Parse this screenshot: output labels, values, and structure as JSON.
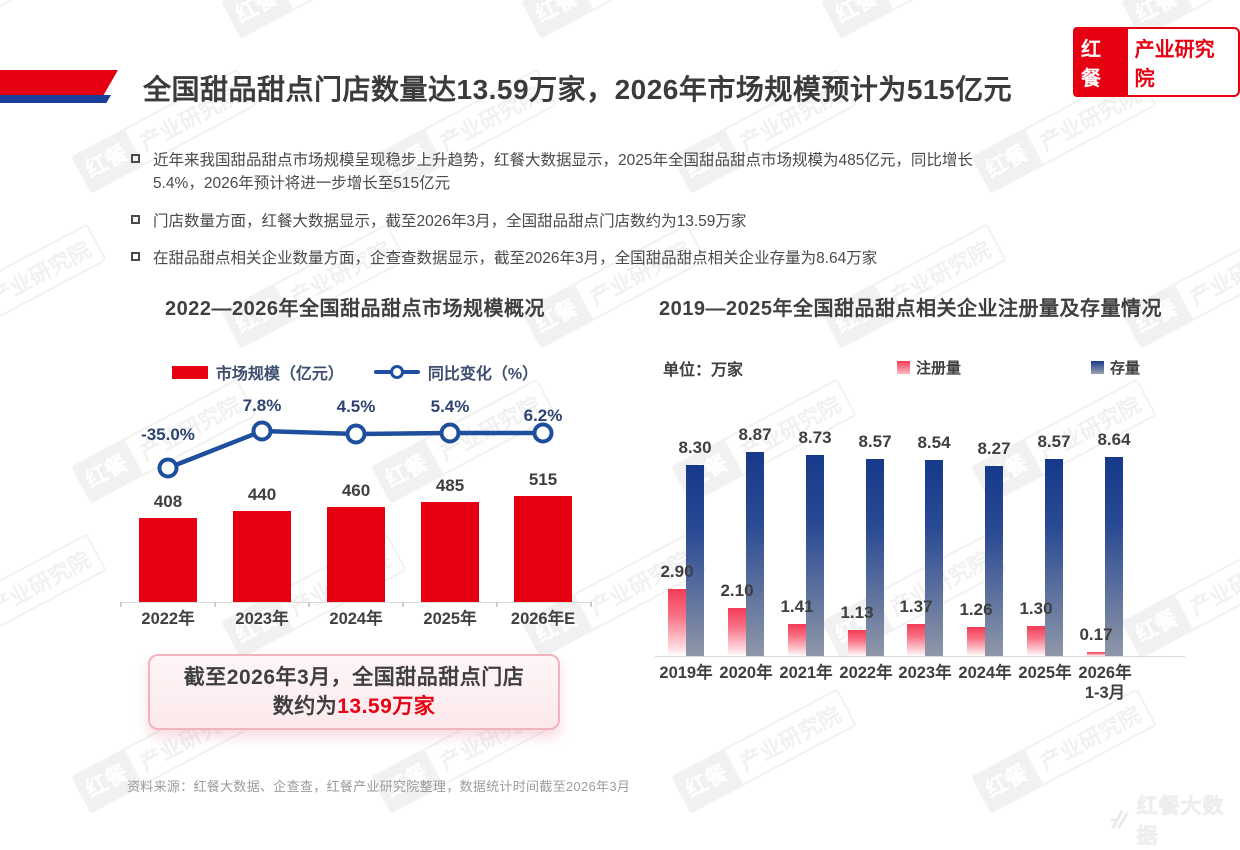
{
  "logo": {
    "brand": "红餐",
    "suffix": "产业研究院",
    "accent_color": "#e60012"
  },
  "header": {
    "title": "全国甜品甜点门店数量达13.59万家，2026年市场规模预计为515亿元"
  },
  "bullets": [
    "近年来我国甜品甜点市场规模呈现稳步上升趋势，红餐大数据显示，2025年全国甜品甜点市场规模为485亿元，同比增长5.4%，2026年预计将进一步增长至515亿元",
    "门店数量方面，红餐大数据显示，截至2026年3月，全国甜品甜点门店数约为13.59万家",
    "在甜品甜点相关企业数量方面，企查查数据显示，截至2026年3月，全国甜品甜点相关企业存量为8.64万家"
  ],
  "watermark": {
    "brand": "红餐",
    "suffix": "产业研究院"
  },
  "callout": {
    "line1": "截至2026年3月，全国甜品甜点门店",
    "line2_prefix": "数约为",
    "line2_highlight": "13.59万家"
  },
  "footer": {
    "source": "资料来源：红餐大数据、企查查，红餐产业研究院整理，数据统计时间截至2026年3月",
    "brand_mark": "红餐大数据"
  },
  "chart_data": [
    {
      "type": "bar",
      "title": "2022—2026年全国甜品甜点市场规模概况",
      "categories": [
        "2022年",
        "2023年",
        "2024年",
        "2025年",
        "2026年E"
      ],
      "series": [
        {
          "name": "市场规模（亿元）",
          "type": "bar",
          "color": "#e60012",
          "values": [
            408,
            440,
            460,
            485,
            515
          ],
          "value_labels": [
            "408",
            "440",
            "460",
            "485",
            "515"
          ]
        },
        {
          "name": "同比变化（%）",
          "type": "line",
          "color": "#1d4f9e",
          "values": [
            -35.0,
            7.8,
            4.5,
            5.4,
            6.2
          ],
          "value_labels": [
            "-35.0%",
            "7.8%",
            "4.5%",
            "5.4%",
            "6.2%"
          ]
        }
      ],
      "legend_position": "top",
      "grid": false
    },
    {
      "type": "bar",
      "title": "2019—2025年全国甜品甜点相关企业注册量及存量情况",
      "unit_label": "单位：万家",
      "categories": [
        "2019年",
        "2020年",
        "2021年",
        "2022年",
        "2023年",
        "2024年",
        "2025年",
        "2026年\n1-3月"
      ],
      "series": [
        {
          "name": "注册量",
          "type": "bar",
          "color_top": "#f23c55",
          "color_bottom": "#ffffff",
          "values": [
            2.9,
            2.1,
            1.41,
            1.13,
            1.37,
            1.26,
            1.3,
            0.17
          ],
          "value_labels": [
            "2.90",
            "2.10",
            "1.41",
            "1.13",
            "1.37",
            "1.26",
            "1.30",
            "0.17"
          ]
        },
        {
          "name": "存量",
          "type": "bar",
          "color_top": "#16398a",
          "color_bottom": "#8f97a8",
          "values": [
            8.3,
            8.87,
            8.73,
            8.57,
            8.54,
            8.27,
            8.57,
            8.64
          ],
          "value_labels": [
            "8.30",
            "8.87",
            "8.73",
            "8.57",
            "8.54",
            "8.27",
            "8.57",
            "8.64"
          ]
        }
      ],
      "legend_position": "top",
      "grid": false
    }
  ]
}
